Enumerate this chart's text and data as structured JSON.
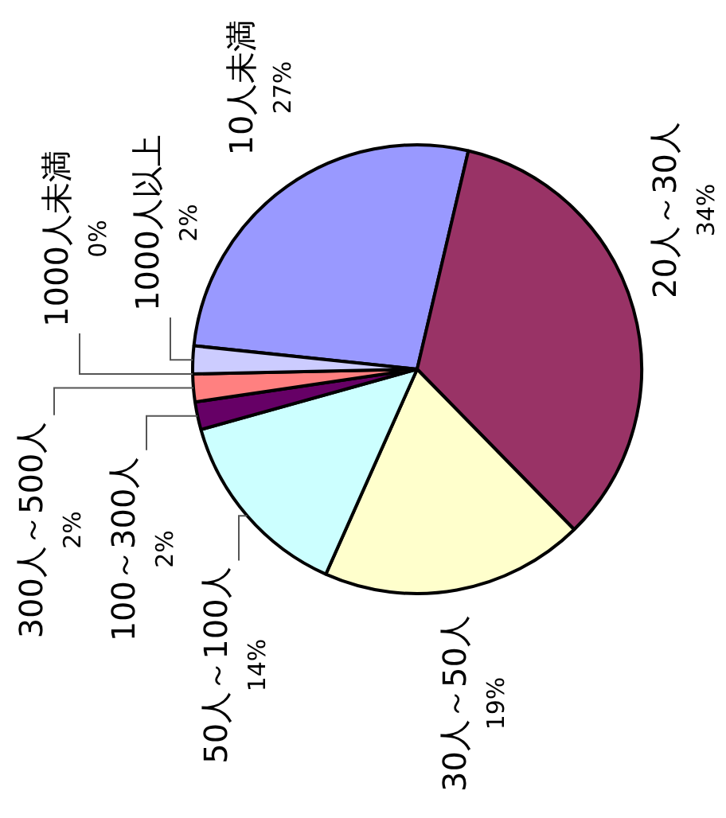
{
  "chart_data": {
    "type": "pie",
    "categories": [
      "10人未満",
      "20人～30人",
      "30人～50人",
      "50人～100人",
      "100～300人",
      "300人～500人",
      "1000人未満",
      "1000人以上"
    ],
    "values": [
      27,
      34,
      19,
      14,
      2,
      2,
      0,
      2
    ],
    "colors": [
      "#9999ff",
      "#993366",
      "#ffffcc",
      "#ccffff",
      "#660066",
      "#ff8080",
      "#0066cc",
      "#ccccff"
    ],
    "value_labels": [
      "27%",
      "34%",
      "19%",
      "14%",
      "2%",
      "2%",
      "0%",
      "2%"
    ],
    "legend": false
  }
}
